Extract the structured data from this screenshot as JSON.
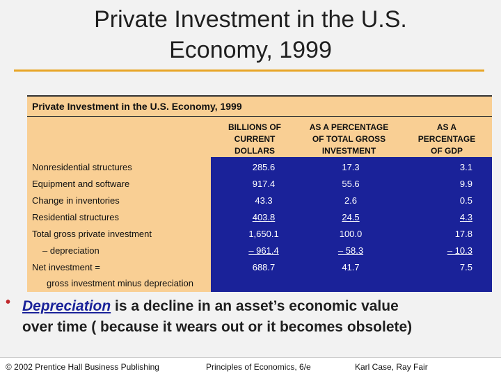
{
  "slide": {
    "title_line1": "Private Investment in the U.S.",
    "title_line2": "Economy, 1999"
  },
  "table": {
    "caption": "Private Investment in the U.S. Economy, 1999",
    "columns": [
      [
        "BILLIONS OF",
        "CURRENT",
        "DOLLARS"
      ],
      [
        "AS A PERCENTAGE",
        "OF TOTAL GROSS",
        "INVESTMENT"
      ],
      [
        "AS A",
        "PERCENTAGE",
        "OF GDP"
      ]
    ],
    "rows": [
      {
        "label": "Nonresidential structures",
        "values": [
          "285.6",
          "17.3",
          "3.1"
        ]
      },
      {
        "label": "Equipment and software",
        "values": [
          "917.4",
          "55.6",
          "9.9"
        ]
      },
      {
        "label": "Change in inventories",
        "values": [
          "43.3",
          "2.6",
          "0.5"
        ]
      },
      {
        "label": "Residential structures",
        "values": [
          "403.8",
          "24.5",
          "4.3"
        ]
      },
      {
        "label": "Total gross private investment",
        "values": [
          "1,650.1",
          "100.0",
          "17.8"
        ]
      },
      {
        "label": "– depreciation",
        "values": [
          "– 961.4",
          "– 58.3",
          "– 10.3"
        ]
      },
      {
        "label": "Net investment =",
        "values": [
          "688.7",
          "41.7",
          "7.5"
        ]
      }
    ],
    "note": "gross investment minus depreciation"
  },
  "bullet": {
    "symbol": "•",
    "term": "Depreciation",
    "text_rest1": " is a decline in an asset’s economic value",
    "text_line2": "over time ( because it wears out or it becomes obsolete)"
  },
  "footer": {
    "copyright": "© 2002 Prentice Hall Business Publishing",
    "book": "Principles of Economics, 6/e",
    "authors": "Karl Case, Ray Fair"
  }
}
